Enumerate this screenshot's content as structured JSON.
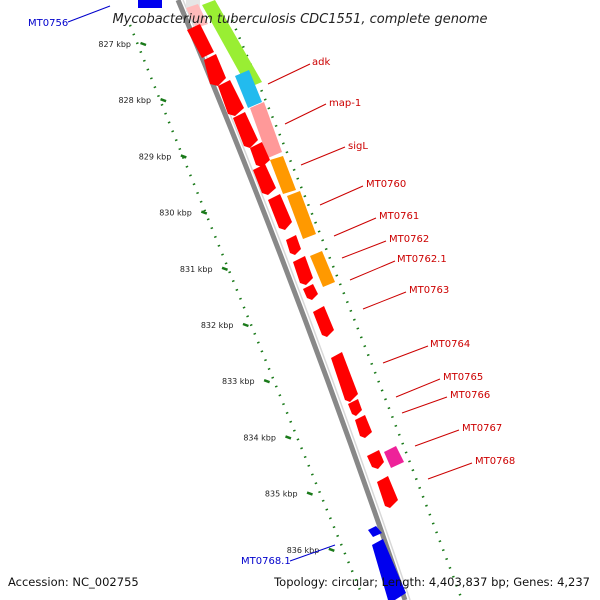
{
  "title": "Mycobacterium tuberculosis CDC1551, complete genome",
  "accession_text": "Accession: NC_002755",
  "topology_text": "Topology: circular; Length: 4,403,837 bp; Genes: 4,237",
  "colors": {
    "forward_gene": "#ff0000",
    "reverse_gene": "#0000ee",
    "backbone": "#888888",
    "ticks": "#1a7a1a",
    "forward_label": "#cc0000",
    "reverse_label": "#0000cc"
  },
  "ticks": [
    "827 kbp",
    "828 kbp",
    "829 kbp",
    "830 kbp",
    "831 kbp",
    "832 kbp",
    "833 kbp",
    "834 kbp",
    "835 kbp",
    "836 kbp"
  ],
  "gene_labels": {
    "forward": [
      "adk",
      "map-1",
      "sigL",
      "MT0760",
      "MT0761",
      "MT0762",
      "MT0762.1",
      "MT0763",
      "MT0764",
      "MT0765",
      "MT0766",
      "MT0767",
      "MT0768"
    ],
    "reverse": [
      "MT0756",
      "MT0768.1"
    ]
  },
  "cog_bands": [
    {
      "name": "adk",
      "color": "#99ee33"
    },
    {
      "name": "map-1",
      "color": "#22bbee"
    },
    {
      "name": "sigL",
      "color": "#ff9999"
    },
    {
      "name": "MT0760",
      "color": "#ff9900"
    },
    {
      "name": "MT0761",
      "color": "#ff9900"
    },
    {
      "name": "MT0762.1",
      "color": "#ff9900"
    },
    {
      "name": "MT0767",
      "color": "#ee2299"
    }
  ]
}
